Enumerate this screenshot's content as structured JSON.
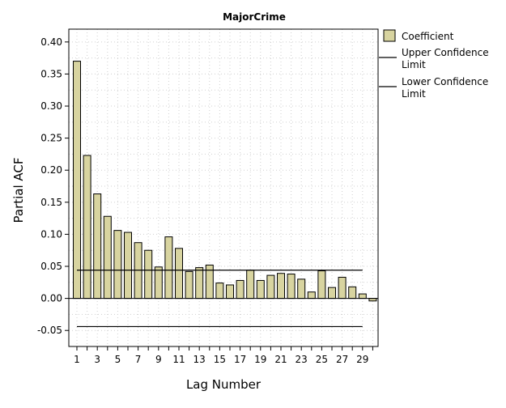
{
  "chart_data": {
    "type": "bar",
    "title": "MajorCrime",
    "xlabel": "Lag Number",
    "ylabel": "Partial ACF",
    "x": [
      1,
      2,
      3,
      4,
      5,
      6,
      7,
      8,
      9,
      10,
      11,
      12,
      13,
      14,
      15,
      16,
      17,
      18,
      19,
      20,
      21,
      22,
      23,
      24,
      25,
      26,
      27,
      28,
      29,
      30
    ],
    "x_tick_labels": [
      "1",
      "3",
      "5",
      "7",
      "9",
      "11",
      "13",
      "15",
      "17",
      "19",
      "21",
      "23",
      "25",
      "27",
      "29"
    ],
    "ylim": [
      -0.075,
      0.42
    ],
    "y_ticks": [
      0.4,
      0.35,
      0.3,
      0.25,
      0.2,
      0.15,
      0.1,
      0.05,
      0.0,
      -0.05
    ],
    "y_tick_labels": [
      "0.40",
      "0.35",
      "0.30",
      "0.25",
      "0.20",
      "0.15",
      "0.10",
      "0.05",
      "0.00",
      "-0.05"
    ],
    "series": [
      {
        "name": "Coefficient",
        "values": [
          0.37,
          0.223,
          0.163,
          0.128,
          0.106,
          0.103,
          0.087,
          0.075,
          0.049,
          0.096,
          0.078,
          0.042,
          0.048,
          0.052,
          0.024,
          0.021,
          0.028,
          0.044,
          0.028,
          0.036,
          0.039,
          0.038,
          0.03,
          0.01,
          0.043,
          0.017,
          0.033,
          0.018,
          0.007,
          -0.004
        ]
      },
      {
        "name": "Upper Confidence Limit",
        "value": 0.044
      },
      {
        "name": "Lower Confidence Limit",
        "value": -0.044
      }
    ],
    "legend": {
      "position": "top-right",
      "items": [
        {
          "kind": "bar",
          "label": "Coefficient"
        },
        {
          "kind": "line",
          "label": "Upper Confidence Limit",
          "lines": [
            "Upper Confidence",
            "Limit"
          ]
        },
        {
          "kind": "line",
          "label": "Lower Confidence Limit",
          "lines": [
            "Lower Confidence",
            "Limit"
          ]
        }
      ]
    },
    "grid": true,
    "colors": {
      "bar_fill": "#d8d4a0",
      "bar_stroke": "#000000",
      "line": "#000000",
      "grid": "#d0d0d0",
      "frame": "#000000"
    }
  }
}
